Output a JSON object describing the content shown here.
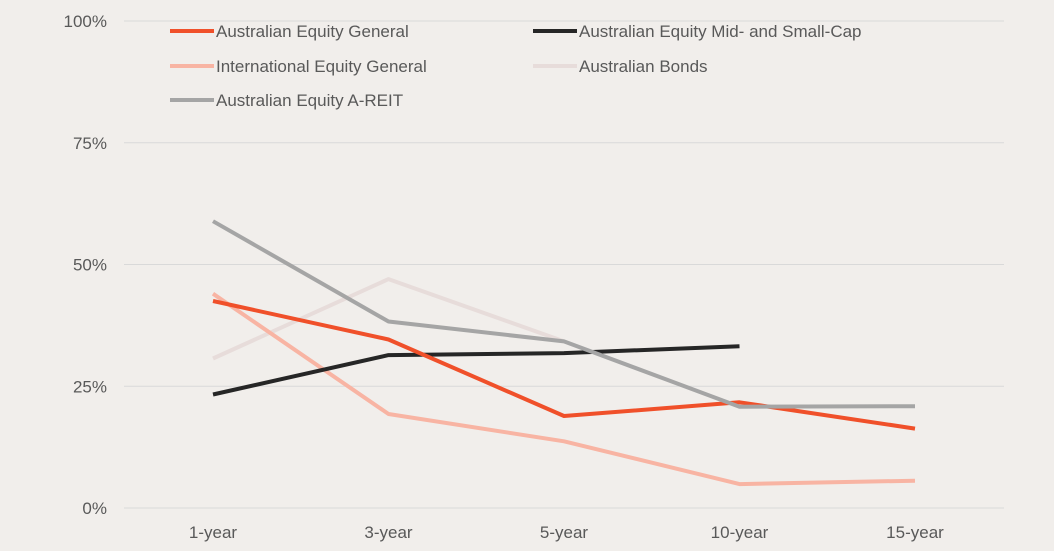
{
  "chart_data": {
    "type": "line",
    "title": "",
    "xlabel": "",
    "ylabel": "",
    "categories": [
      "1-year",
      "3-year",
      "5-year",
      "10-year",
      "15-year"
    ],
    "ylim": [
      0,
      100
    ],
    "yticks": [
      0,
      25,
      50,
      75,
      100
    ],
    "ytick_labels": [
      "0%",
      "25%",
      "50%",
      "75%",
      "100%"
    ],
    "grid": true,
    "legend_position": "top",
    "series": [
      {
        "name": "Australian Equity General",
        "color": "#f0502a",
        "values": [
          42.5,
          34.6,
          18.9,
          21.7,
          16.3
        ]
      },
      {
        "name": "Australian Equity Mid- and Small-Cap",
        "color": "#262626",
        "values": [
          23.3,
          31.4,
          31.8,
          33.2,
          null
        ]
      },
      {
        "name": "International Equity General",
        "color": "#f8b4a3",
        "values": [
          44.0,
          19.3,
          13.7,
          4.9,
          5.6
        ]
      },
      {
        "name": "Australian Bonds",
        "color": "#e7dcda",
        "values": [
          30.7,
          47.0,
          34.2,
          null,
          null
        ]
      },
      {
        "name": "Australian Equity A-REIT",
        "color": "#a5a5a5",
        "values": [
          58.9,
          38.3,
          34.2,
          20.8,
          20.9
        ]
      }
    ]
  }
}
